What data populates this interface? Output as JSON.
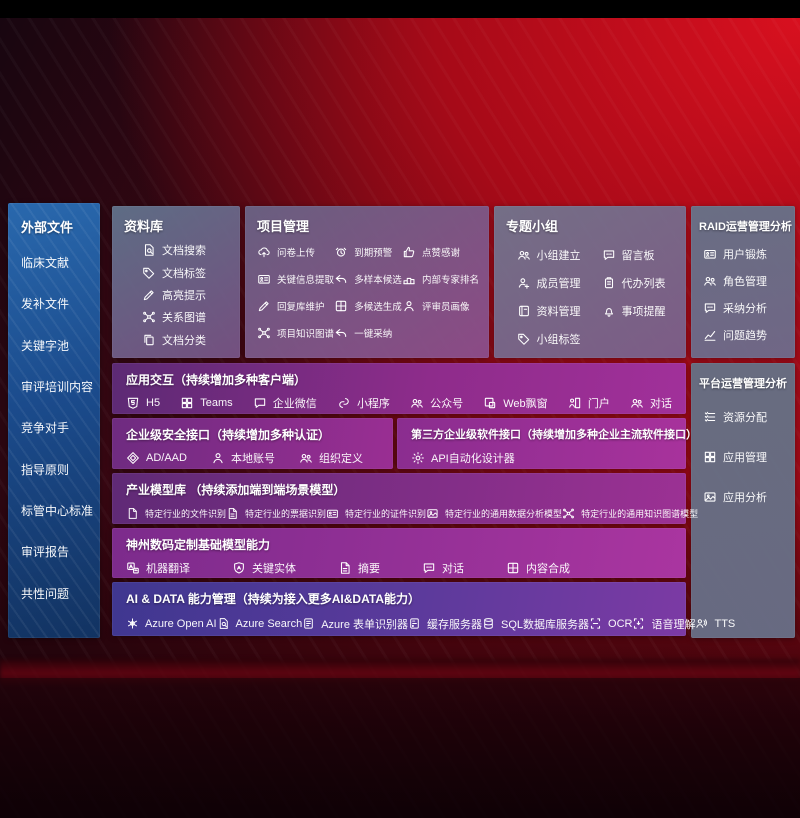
{
  "colors": {
    "background_red": "#a80a16",
    "sidebar_blue": "#1b4b8c",
    "panel_slate": "#64708c",
    "row_purple": "#9a2e93",
    "row_indigo": "#4a3c96",
    "text": "#ffffff"
  },
  "sidebar": {
    "title": "外部文件",
    "items": [
      {
        "name": "clinical-literature",
        "label": "临床文献"
      },
      {
        "name": "supplement-files",
        "label": "发补文件"
      },
      {
        "name": "keyword-pool",
        "label": "关键字池"
      },
      {
        "name": "review-training",
        "label": "审评培训内容"
      },
      {
        "name": "competitors",
        "label": "竞争对手"
      },
      {
        "name": "guidelines",
        "label": "指导原则"
      },
      {
        "name": "center-standards",
        "label": "标管中心标准"
      },
      {
        "name": "review-reports",
        "label": "审评报告"
      },
      {
        "name": "common-issues",
        "label": "共性问题"
      }
    ]
  },
  "panels": {
    "library": {
      "title": "资料库",
      "items": [
        {
          "name": "doc-search",
          "icon": "docsearch",
          "label": "文档搜索"
        },
        {
          "name": "doc-tag",
          "icon": "tag",
          "label": "文档标签"
        },
        {
          "name": "highlight-tip",
          "icon": "pencil",
          "label": "高亮提示"
        },
        {
          "name": "relation-graph",
          "icon": "graph",
          "label": "关系图谱"
        },
        {
          "name": "doc-classify",
          "icon": "doccopy",
          "label": "文档分类"
        }
      ]
    },
    "project": {
      "title": "项目管理",
      "items": [
        {
          "name": "questionnaire-upload",
          "icon": "cloudup",
          "label": "问卷上传"
        },
        {
          "name": "due-warning",
          "icon": "alarm",
          "label": "到期预警"
        },
        {
          "name": "like-thanks",
          "icon": "thumb",
          "label": "点赞感谢"
        },
        {
          "name": "key-info-extract",
          "icon": "card",
          "label": "关键信息提取"
        },
        {
          "name": "multi-sample-candidate",
          "icon": "reply",
          "label": "多样本候选"
        },
        {
          "name": "expert-ranking",
          "icon": "podium",
          "label": "内部专家排名"
        },
        {
          "name": "reply-lib-maintain",
          "icon": "pencil",
          "label": "回复库维护"
        },
        {
          "name": "multi-candidate-generate",
          "icon": "puzzle",
          "label": "多候选生成"
        },
        {
          "name": "reviewer-portrait",
          "icon": "person",
          "label": "评审员画像"
        },
        {
          "name": "project-knowledge-graph",
          "icon": "graph",
          "label": "项目知识图谱"
        },
        {
          "name": "one-click-adopt",
          "icon": "reply",
          "label": "一键采纳"
        }
      ]
    },
    "groups": {
      "title": "专题小组",
      "items": [
        {
          "name": "group-create",
          "icon": "people",
          "label": "小组建立"
        },
        {
          "name": "message-board",
          "icon": "chatqa",
          "label": "留言板"
        },
        {
          "name": "member-manage",
          "icon": "personplus",
          "label": "成员管理"
        },
        {
          "name": "todo-list",
          "icon": "clipboard",
          "label": "代办列表"
        },
        {
          "name": "material-manage",
          "icon": "book",
          "label": "资料管理"
        },
        {
          "name": "matter-remind",
          "icon": "bell",
          "label": "事项提醒"
        },
        {
          "name": "group-tag",
          "icon": "tag",
          "label": "小组标签"
        }
      ]
    },
    "raid": {
      "title": "RAID运营管理分析",
      "items": [
        {
          "name": "user-training",
          "icon": "card",
          "label": "用户锻炼"
        },
        {
          "name": "role-manage",
          "icon": "people",
          "label": "角色管理"
        },
        {
          "name": "adoption-analysis",
          "icon": "chatqa",
          "label": "采纳分析"
        },
        {
          "name": "issue-trend",
          "icon": "chart",
          "label": "问题趋势"
        }
      ]
    },
    "platform": {
      "title": "平台运营管理分析",
      "items": [
        {
          "name": "resource-allocation",
          "icon": "list",
          "label": "资源分配"
        },
        {
          "name": "app-manage",
          "icon": "grid",
          "label": "应用管理"
        },
        {
          "name": "app-analysis",
          "icon": "image",
          "label": "应用分析"
        }
      ]
    }
  },
  "rows": {
    "interaction": {
      "title": "应用交互（持续增加多种客户端）",
      "items": [
        {
          "name": "h5",
          "icon": "h5",
          "label": "H5"
        },
        {
          "name": "teams",
          "icon": "grid",
          "label": "Teams"
        },
        {
          "name": "wecom",
          "icon": "chat",
          "label": "企业微信"
        },
        {
          "name": "mini-program",
          "icon": "scurve",
          "label": "小程序"
        },
        {
          "name": "official-account",
          "icon": "people",
          "label": "公众号"
        },
        {
          "name": "web-popup",
          "icon": "window",
          "label": "Web飘窗"
        },
        {
          "name": "portal",
          "icon": "door",
          "label": "门户"
        },
        {
          "name": "dialog",
          "icon": "people",
          "label": "对话"
        }
      ]
    },
    "security": {
      "title": "企业级安全接口（持续增加多种认证）",
      "items": [
        {
          "name": "ad-aad",
          "icon": "diamond",
          "label": "AD/AAD"
        },
        {
          "name": "local-account",
          "icon": "person",
          "label": "本地账号"
        },
        {
          "name": "org-definition",
          "icon": "people",
          "label": "组织定义"
        }
      ]
    },
    "thirdparty": {
      "title": "第三方企业级软件接口（持续增加多种企业主流软件接口）",
      "items": [
        {
          "name": "api-auto-designer",
          "icon": "gear",
          "label": "API自动化设计器"
        }
      ]
    },
    "industry": {
      "title": "产业模型库 （持续添加端到端场景模型）",
      "items": [
        {
          "name": "industry-file-recognition",
          "icon": "doc",
          "label": "特定行业的文件识别"
        },
        {
          "name": "industry-bill-recognition",
          "icon": "doclines",
          "label": "特定行业的票据识别"
        },
        {
          "name": "industry-id-recognition",
          "icon": "card",
          "label": "特定行业的证件识别"
        },
        {
          "name": "industry-data-analysis-model",
          "icon": "image",
          "label": "特定行业的通用数据分析模型"
        },
        {
          "name": "industry-knowledge-graph-model",
          "icon": "graph",
          "label": "特定行业的通用知识图谱模型"
        }
      ]
    },
    "shenzhou": {
      "title": "神州数码定制基础模型能力",
      "items": [
        {
          "name": "machine-translation",
          "icon": "translate",
          "label": "机器翻译"
        },
        {
          "name": "key-entity",
          "icon": "shield",
          "label": "关键实体"
        },
        {
          "name": "summary",
          "icon": "doclines",
          "label": "摘要"
        },
        {
          "name": "dialogue",
          "icon": "chatqa",
          "label": "对话"
        },
        {
          "name": "content-synthesis",
          "icon": "puzzle",
          "label": "内容合成"
        }
      ]
    },
    "aidata": {
      "title": "AI & DATA 能力管理（持续为接入更多AI&DATA能力）",
      "items": [
        {
          "name": "azure-openai",
          "icon": "flower",
          "label": "Azure Open AI"
        },
        {
          "name": "azure-search",
          "icon": "docsearch",
          "label": "Azure Search"
        },
        {
          "name": "azure-form-recognizer",
          "icon": "form",
          "label": "Azure 表单识别器"
        },
        {
          "name": "cache-server",
          "icon": "server",
          "label": "缓存服务器"
        },
        {
          "name": "sql-db-server",
          "icon": "db",
          "label": "SQL数据库服务器"
        },
        {
          "name": "ocr",
          "icon": "ocr",
          "label": "OCR"
        },
        {
          "name": "speech-understanding",
          "icon": "voice",
          "label": "语音理解"
        },
        {
          "name": "tts",
          "icon": "tts",
          "label": "TTS"
        }
      ]
    }
  }
}
